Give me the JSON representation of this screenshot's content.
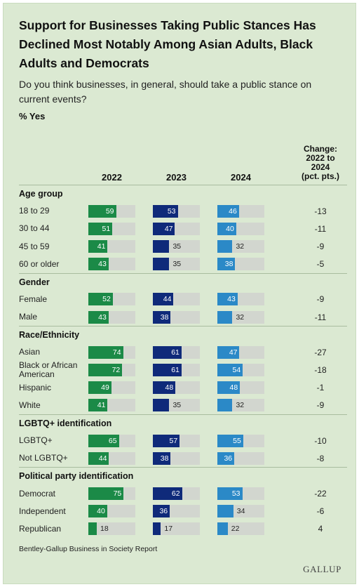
{
  "title": "Support for Businesses Taking Public Stances Has Declined Most Notably Among Asian Adults, Black Adults and Democrats",
  "subtitle": "Do you think businesses, in general, should take a public stance on current events?",
  "unit_label": "% Yes",
  "source": "Bentley-Gallup Business in Society Report",
  "logo": "GALLUP",
  "colors": {
    "2022": "#1b8a47",
    "2023": "#0f2a7a",
    "2024": "#2b89c7",
    "track": "#d2d6cf",
    "background": "#dbe9d2"
  },
  "chart_data": {
    "type": "bar",
    "years": [
      "2022",
      "2023",
      "2024"
    ],
    "change_header": [
      "Change:",
      "2022 to",
      "2024",
      "(pct. pts.)"
    ],
    "xlim": [
      0,
      100
    ],
    "groups": [
      {
        "name": "Age group",
        "rows": [
          {
            "label": "18 to 29",
            "values": [
              59,
              53,
              46
            ],
            "change": "-13"
          },
          {
            "label": "30 to 44",
            "values": [
              51,
              47,
              40
            ],
            "change": "-11"
          },
          {
            "label": "45 to 59",
            "values": [
              41,
              35,
              32
            ],
            "change": "-9"
          },
          {
            "label": "60 or older",
            "values": [
              43,
              35,
              38
            ],
            "change": "-5"
          }
        ]
      },
      {
        "name": "Gender",
        "rows": [
          {
            "label": "Female",
            "values": [
              52,
              44,
              43
            ],
            "change": "-9"
          },
          {
            "label": "Male",
            "values": [
              43,
              38,
              32
            ],
            "change": "-11"
          }
        ]
      },
      {
        "name": "Race/Ethnicity",
        "rows": [
          {
            "label": "Asian",
            "values": [
              74,
              61,
              47
            ],
            "change": "-27"
          },
          {
            "label": "Black or African American",
            "values": [
              72,
              61,
              54
            ],
            "change": "-18"
          },
          {
            "label": "Hispanic",
            "values": [
              49,
              48,
              48
            ],
            "change": "-1"
          },
          {
            "label": "White",
            "values": [
              41,
              35,
              32
            ],
            "change": "-9"
          }
        ]
      },
      {
        "name": "LGBTQ+ identification",
        "rows": [
          {
            "label": "LGBTQ+",
            "values": [
              65,
              57,
              55
            ],
            "change": "-10"
          },
          {
            "label": "Not LGBTQ+",
            "values": [
              44,
              38,
              36
            ],
            "change": "-8"
          }
        ]
      },
      {
        "name": "Political party identification",
        "rows": [
          {
            "label": "Democrat",
            "values": [
              75,
              62,
              53
            ],
            "change": "-22"
          },
          {
            "label": "Independent",
            "values": [
              40,
              36,
              34
            ],
            "change": "-6"
          },
          {
            "label": "Republican",
            "values": [
              18,
              17,
              22
            ],
            "change": "4"
          }
        ]
      }
    ]
  }
}
